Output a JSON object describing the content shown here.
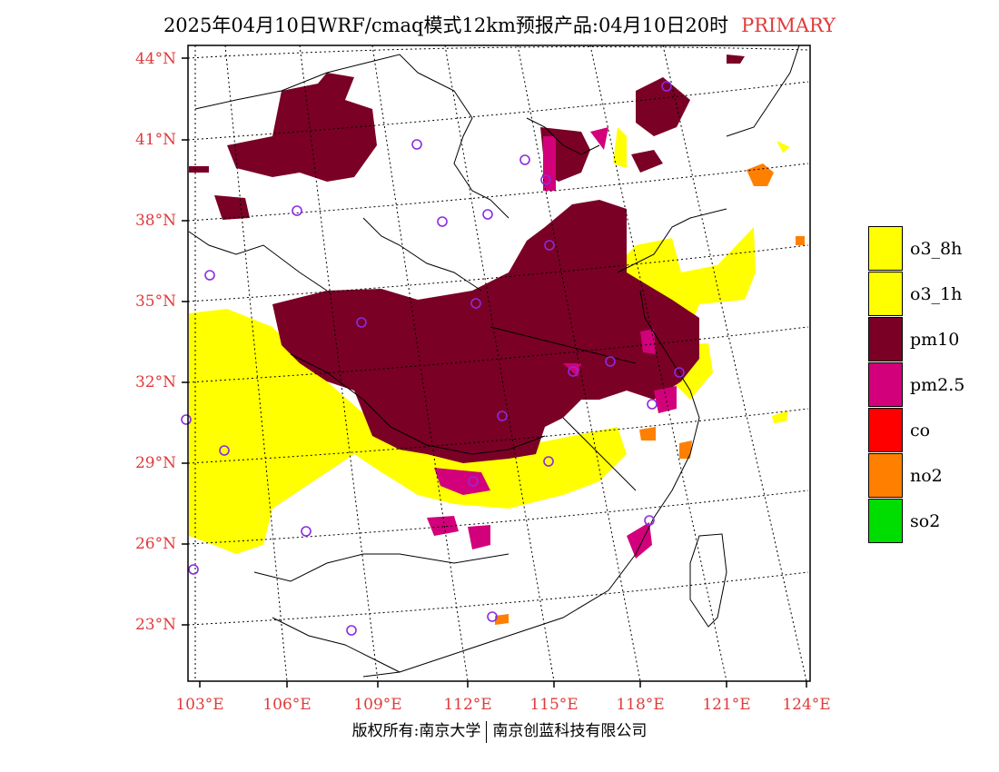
{
  "header": {
    "title": "2025年04月10日WRF/cmaq模式12km预报产品:04月10日20时",
    "tag": "PRIMARY"
  },
  "axes": {
    "lat_labels": [
      "44°N",
      "41°N",
      "38°N",
      "35°N",
      "32°N",
      "29°N",
      "26°N",
      "23°N"
    ],
    "lon_labels": [
      "103°E",
      "106°E",
      "109°E",
      "112°E",
      "115°E",
      "118°E",
      "121°E",
      "124°E"
    ]
  },
  "legend": [
    {
      "label": "o3_8h",
      "color": "#ffff00"
    },
    {
      "label": "o3_1h",
      "color": "#ffff00"
    },
    {
      "label": "pm10",
      "color": "#7a0026"
    },
    {
      "label": "pm2.5",
      "color": "#d2007a"
    },
    {
      "label": "co",
      "color": "#ff0000"
    },
    {
      "label": "no2",
      "color": "#ff7f00"
    },
    {
      "label": "so2",
      "color": "#00dd00"
    }
  ],
  "map": {
    "station_marker_color": "#8a2be2"
  },
  "footer": {
    "left": "版权所有:南京大学",
    "right": "南京创蓝科技有限公司"
  }
}
